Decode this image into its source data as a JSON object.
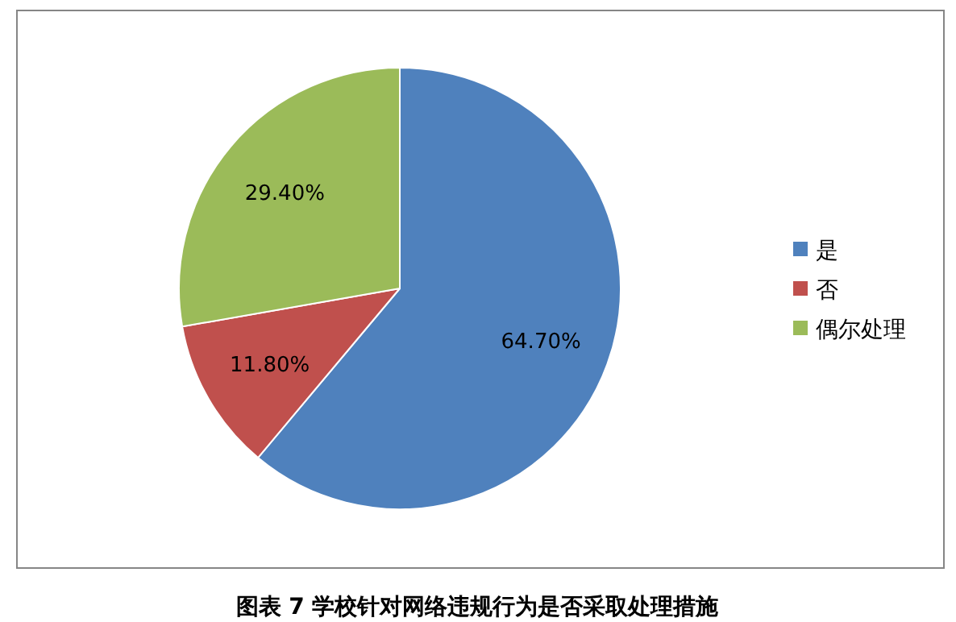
{
  "chart_data": {
    "type": "pie",
    "categories": [
      "是",
      "否",
      "偶尔处理"
    ],
    "values": [
      64.7,
      11.8,
      29.4
    ],
    "value_labels": [
      "64.70%",
      "11.80%",
      "29.40%"
    ],
    "colors": [
      "#4f81bd",
      "#c0504d",
      "#9bbb59"
    ],
    "legend": "right",
    "annotations": [
      "图表 7 学校针对网络违规行为是否采取处理措施"
    ]
  }
}
